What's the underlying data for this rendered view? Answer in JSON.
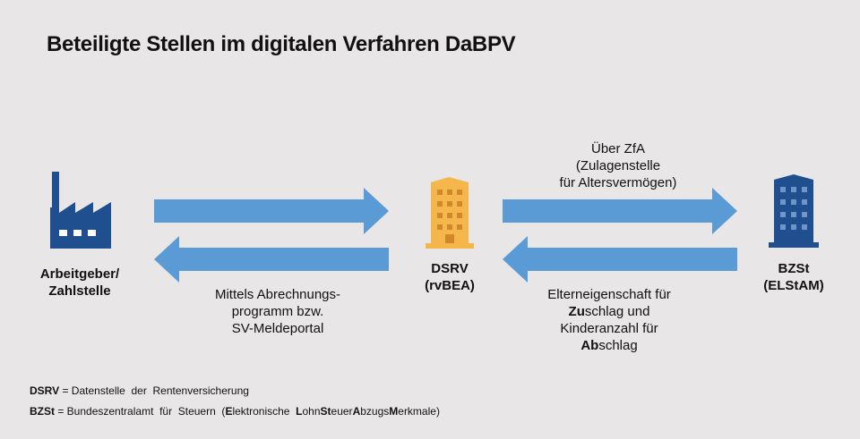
{
  "title": "Beteiligte Stellen im digitalen Verfahren DaBPV",
  "nodes": {
    "employer": {
      "line1": "Arbeitgeber/",
      "line2": "Zahlstelle",
      "icon": "factory-icon",
      "color": "#1f4f8f"
    },
    "dsrv": {
      "line1": "DSRV",
      "line2": "(rvBEA)",
      "icon": "office-building-icon",
      "color": "#f5b74c"
    },
    "bzst": {
      "line1": "BZSt",
      "line2": "(ELStAM)",
      "icon": "office-building-icon",
      "color": "#1f4f8f"
    }
  },
  "arrow_color": "#5b9bd5",
  "labels": {
    "left": [
      "Mittels Abrechnungs-",
      "programm bzw.",
      "SV-Meldeportal"
    ],
    "top_right": [
      "Über ZfA",
      "(Zulagenstelle",
      "für Altersvermögen)"
    ],
    "bottom_right": {
      "line1": "Elterneigenschaft für",
      "line2_bold": "Zu",
      "line2_rest": "schlag und",
      "line3": "Kinderanzahl für",
      "line4_bold": "Ab",
      "line4_rest": "schlag"
    }
  },
  "legend": {
    "dsrv_abbr": "DSRV",
    "dsrv_text": " = Datenstelle  der  Rentenversicherung",
    "bzst_abbr": "BZSt",
    "bzst_text_1": " = Bundeszentralamt  für  Steuern  (",
    "bzst_parts": [
      {
        "b": "E",
        "t": "lektronische  "
      },
      {
        "b": "L",
        "t": "ohn"
      },
      {
        "b": "St",
        "t": "euer"
      },
      {
        "b": "A",
        "t": "bzugs"
      },
      {
        "b": "M",
        "t": "erkmale"
      }
    ],
    "bzst_text_end": ")"
  }
}
